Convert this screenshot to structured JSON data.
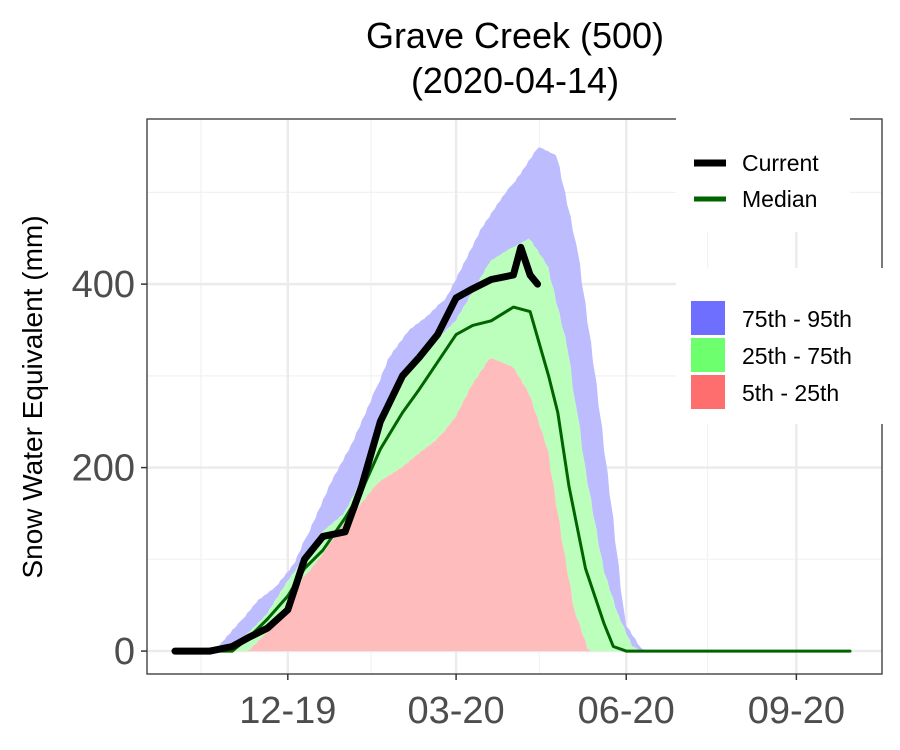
{
  "chart_data": {
    "type": "area",
    "title": "Grave Creek (500)",
    "subtitle": "(2020-04-14)",
    "xlabel": "",
    "ylabel": "Snow Water Equivalent (mm)",
    "x_range": [
      "2019-10-01",
      "2020-09-30"
    ],
    "ylim": [
      -25,
      580
    ],
    "y_ticks": [
      0,
      200,
      400
    ],
    "x_ticks": [
      {
        "date": "2019-12-01",
        "label": "12-19"
      },
      {
        "date": "2020-03-01",
        "label": "03-20"
      },
      {
        "date": "2020-06-01",
        "label": "06-20"
      },
      {
        "date": "2020-09-01",
        "label": "09-20"
      }
    ],
    "grid": true,
    "legend_lines": [
      {
        "label": "Current",
        "color": "#000000"
      },
      {
        "label": "Median",
        "color": "#006400"
      }
    ],
    "legend_bands": [
      {
        "label": "75th - 95th",
        "color": "#6e6eff"
      },
      {
        "label": "25th - 75th",
        "color": "#6eff6e"
      },
      {
        "label": "5th - 25th",
        "color": "#ff6e6e"
      }
    ],
    "legend_position": "right",
    "colors": {
      "band_75_95": "#bcbcff",
      "band_25_75": "#bcffbc",
      "band_5_25": "#ffbcbc",
      "current": "#000000",
      "median": "#006400"
    },
    "series": [
      {
        "name": "95th",
        "x": [
          "2019-10-01",
          "2019-10-25",
          "2019-11-05",
          "2019-11-15",
          "2019-11-25",
          "2019-12-05",
          "2019-12-15",
          "2019-12-25",
          "2020-01-05",
          "2020-01-15",
          "2020-01-25",
          "2020-02-05",
          "2020-02-15",
          "2020-02-25",
          "2020-03-05",
          "2020-03-15",
          "2020-03-25",
          "2020-04-05",
          "2020-04-15",
          "2020-04-25",
          "2020-05-05",
          "2020-05-15",
          "2020-05-25",
          "2020-06-01",
          "2020-06-10",
          "2020-06-20",
          "2020-09-30"
        ],
        "values": [
          0,
          5,
          30,
          55,
          70,
          95,
          140,
          185,
          225,
          270,
          320,
          350,
          365,
          385,
          420,
          460,
          490,
          520,
          550,
          540,
          450,
          310,
          150,
          30,
          2,
          0,
          0
        ]
      },
      {
        "name": "75th",
        "x": [
          "2019-10-01",
          "2019-11-01",
          "2019-11-10",
          "2019-11-20",
          "2019-12-01",
          "2019-12-10",
          "2019-12-20",
          "2020-01-01",
          "2020-01-10",
          "2020-01-20",
          "2020-02-01",
          "2020-02-10",
          "2020-02-20",
          "2020-03-01",
          "2020-03-10",
          "2020-03-20",
          "2020-04-01",
          "2020-04-10",
          "2020-04-20",
          "2020-05-01",
          "2020-05-10",
          "2020-05-20",
          "2020-05-28",
          "2020-06-05",
          "2020-06-10",
          "2020-09-30"
        ],
        "values": [
          0,
          5,
          20,
          40,
          75,
          100,
          130,
          150,
          185,
          250,
          300,
          320,
          340,
          360,
          390,
          425,
          440,
          450,
          420,
          330,
          200,
          90,
          40,
          5,
          0,
          0
        ]
      },
      {
        "name": "25th",
        "x": [
          "2019-10-01",
          "2019-11-10",
          "2019-11-20",
          "2019-12-01",
          "2019-12-10",
          "2019-12-20",
          "2020-01-01",
          "2020-01-10",
          "2020-01-20",
          "2020-02-01",
          "2020-02-10",
          "2020-02-20",
          "2020-03-01",
          "2020-03-10",
          "2020-03-20",
          "2020-04-01",
          "2020-04-10",
          "2020-04-20",
          "2020-04-28",
          "2020-05-05",
          "2020-05-12",
          "2020-09-30"
        ],
        "values": [
          0,
          0,
          20,
          45,
          80,
          105,
          140,
          160,
          185,
          200,
          215,
          230,
          255,
          290,
          320,
          310,
          280,
          220,
          120,
          40,
          0,
          0
        ]
      },
      {
        "name": "5th",
        "x": [
          "2019-10-01",
          "2019-12-01",
          "2019-12-15",
          "2020-01-01",
          "2020-01-15",
          "2020-02-01",
          "2020-02-15",
          "2020-03-01",
          "2020-03-15",
          "2020-04-01",
          "2020-04-15",
          "2020-04-25",
          "2020-05-05",
          "2020-09-30"
        ],
        "values": [
          0,
          0,
          0,
          0,
          0,
          0,
          0,
          0,
          0,
          0,
          0,
          0,
          0,
          0
        ]
      },
      {
        "name": "Median",
        "x": [
          "2019-10-01",
          "2019-11-01",
          "2019-11-10",
          "2019-11-20",
          "2019-12-01",
          "2019-12-10",
          "2019-12-20",
          "2020-01-01",
          "2020-01-10",
          "2020-01-20",
          "2020-02-01",
          "2020-02-10",
          "2020-02-20",
          "2020-03-01",
          "2020-03-10",
          "2020-03-20",
          "2020-04-01",
          "2020-04-10",
          "2020-04-20",
          "2020-04-25",
          "2020-05-01",
          "2020-05-10",
          "2020-05-20",
          "2020-05-25",
          "2020-06-01",
          "2020-09-30"
        ],
        "values": [
          0,
          0,
          15,
          35,
          60,
          90,
          110,
          145,
          175,
          220,
          260,
          285,
          315,
          345,
          355,
          360,
          375,
          370,
          300,
          260,
          180,
          90,
          30,
          5,
          0,
          0
        ]
      },
      {
        "name": "Current",
        "x": [
          "2019-10-01",
          "2019-10-20",
          "2019-11-01",
          "2019-11-10",
          "2019-11-20",
          "2019-12-01",
          "2019-12-10",
          "2019-12-20",
          "2020-01-01",
          "2020-01-10",
          "2020-01-20",
          "2020-02-01",
          "2020-02-10",
          "2020-02-20",
          "2020-03-01",
          "2020-03-10",
          "2020-03-20",
          "2020-04-01",
          "2020-04-05",
          "2020-04-10",
          "2020-04-14"
        ],
        "values": [
          0,
          0,
          5,
          15,
          25,
          45,
          100,
          125,
          130,
          180,
          250,
          300,
          320,
          345,
          385,
          395,
          405,
          410,
          440,
          410,
          400
        ]
      }
    ]
  }
}
